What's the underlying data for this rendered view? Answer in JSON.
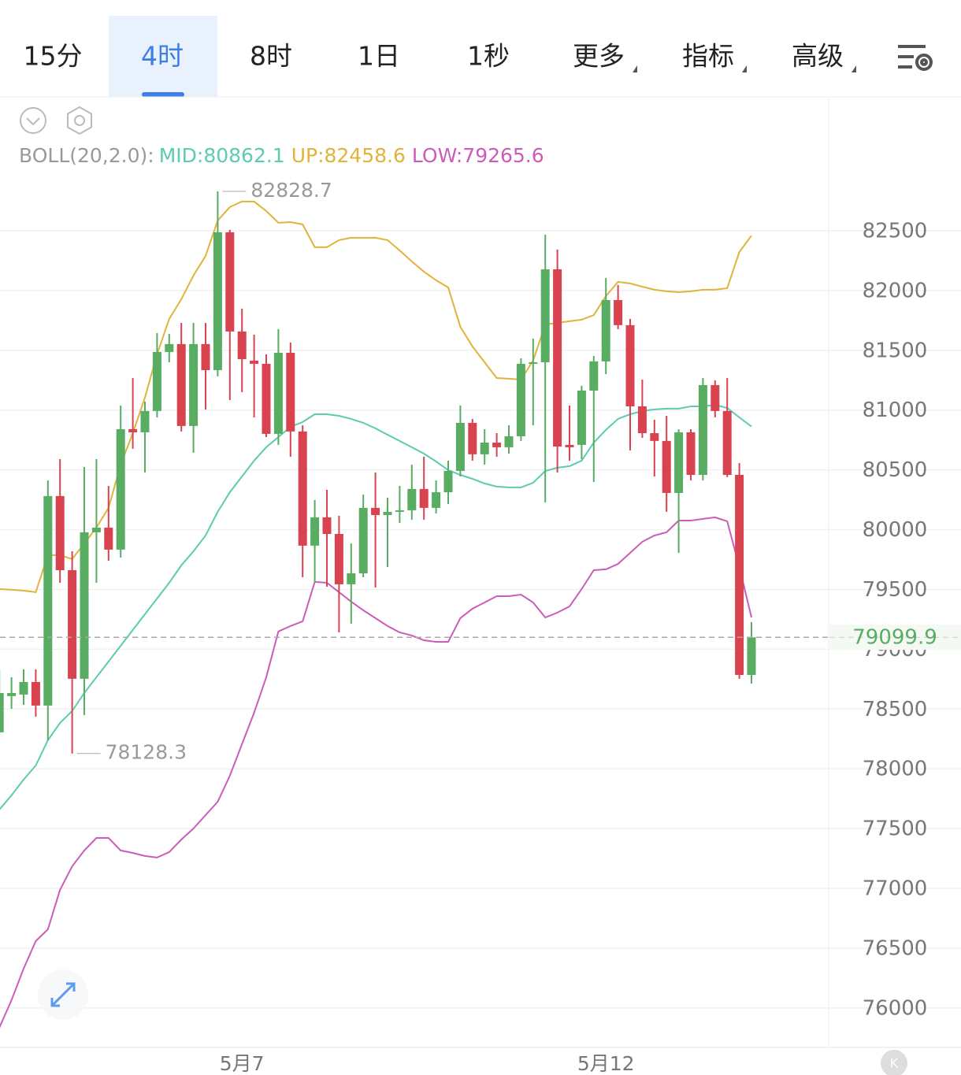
{
  "tabs": [
    "15分",
    "4时",
    "8时",
    "1日",
    "1秒",
    "更多",
    "指标",
    "高级"
  ],
  "active_tab": 1,
  "chart_data": {
    "type": "candlestick",
    "indicator": "BOLL(20,2.0):",
    "categories": [
      null,
      null,
      null,
      null,
      null,
      null,
      null,
      null,
      null,
      null,
      null,
      null,
      null,
      null,
      null,
      null,
      null,
      null,
      null,
      null,
      "5月7",
      null,
      null,
      null,
      null,
      null,
      null,
      null,
      null,
      null,
      null,
      null,
      null,
      null,
      null,
      null,
      null,
      null,
      null,
      null,
      null,
      null,
      null,
      null,
      null,
      null,
      null,
      null,
      null,
      null,
      "5月12",
      null,
      null,
      null,
      null,
      null,
      null,
      null,
      null,
      null,
      null,
      null,
      null
    ],
    "open": [
      78305,
      78608,
      78621,
      78726,
      78529,
      80281,
      79661,
      78753,
      79978,
      80017,
      79833,
      80840,
      80814,
      80992,
      81486,
      81552,
      80867,
      81552,
      81334,
      82487,
      81657,
      81413,
      81387,
      80801,
      81479,
      80821,
      79866,
      80103,
      79964,
      79543,
      79635,
      80182,
      80122,
      80149,
      80162,
      80340,
      80182,
      80313,
      80491,
      80893,
      80630,
      80728,
      80689,
      80781,
      81387,
      81400,
      82177,
      80709,
      80709,
      81163,
      81407,
      81920,
      81710,
      81031,
      80807,
      80742,
      80307,
      80814,
      80458,
      81209,
      80992,
      80458,
      78785
    ],
    "high": [
      78832,
      78766,
      78832,
      78832,
      80412,
      80590,
      79819,
      80524,
      80590,
      80366,
      81038,
      81268,
      81071,
      81644,
      81637,
      81729,
      81729,
      81729,
      82828.7,
      82507,
      81848,
      81631,
      81466,
      81677,
      81565,
      80873,
      80248,
      80333,
      80116,
      79885,
      80294,
      80478,
      80267,
      80366,
      80544,
      80610,
      80412,
      80577,
      81038,
      80926,
      80840,
      80807,
      80873,
      81433,
      81598,
      82467,
      82342,
      81038,
      81203,
      81453,
      82105,
      82046,
      81762,
      81255,
      80919,
      80952,
      80840,
      80840,
      81268,
      81249,
      81268,
      80557,
      79227
    ],
    "low": [
      78305,
      78502,
      78535,
      78436,
      78239,
      79556,
      78128.3,
      78450,
      79556,
      79740,
      79767,
      80676,
      80478,
      80939,
      81400,
      80821,
      80643,
      81005,
      81282,
      81084,
      81150,
      80939,
      80774,
      80709,
      80610,
      79602,
      79556,
      79523,
      79141,
      79214,
      79602,
      79516,
      79688,
      80057,
      80083,
      80083,
      80136,
      80215,
      80445,
      80577,
      80544,
      80610,
      80636,
      80742,
      80873,
      80228,
      80478,
      80577,
      80590,
      80399,
      81301,
      81677,
      80663,
      80768,
      80445,
      80149,
      79806,
      80412,
      80412,
      80939,
      80439,
      78753,
      78713
    ],
    "close": [
      78634,
      78634,
      78726,
      78529,
      80281,
      79661,
      78753,
      79978,
      80017,
      79833,
      80840,
      80814,
      80992,
      81486,
      81552,
      80867,
      81552,
      81334,
      82487,
      81657,
      81426,
      81387,
      80801,
      81479,
      80821,
      79866,
      80103,
      79964,
      79543,
      79635,
      80182,
      80122,
      80149,
      80162,
      80340,
      80182,
      80313,
      80491,
      80893,
      80630,
      80728,
      80689,
      80781,
      81387,
      81400,
      82177,
      80695,
      80689,
      81163,
      81407,
      81920,
      81710,
      81031,
      80807,
      80742,
      80307,
      80814,
      80458,
      81209,
      80992,
      80458,
      78785,
      79099.9
    ],
    "up_color": "#58ad62",
    "down_color": "#d8434f",
    "series": [
      {
        "name": "MID:80862.1",
        "color": "#5ccbb0",
        "values": [
          77659,
          77778,
          77910,
          78028,
          78239,
          78384,
          78483,
          78634,
          78766,
          78897,
          79029,
          79161,
          79293,
          79424,
          79556,
          79701,
          79819,
          79951,
          80149,
          80313,
          80445,
          80577,
          80689,
          80774,
          80860,
          80900,
          80965,
          80965,
          80952,
          80926,
          80893,
          80847,
          80794,
          80742,
          80689,
          80636,
          80570,
          80498,
          80458,
          80425,
          80386,
          80360,
          80353,
          80353,
          80392,
          80491,
          80518,
          80531,
          80577,
          80728,
          80834,
          80926,
          80965,
          80992,
          81005,
          81012,
          81012,
          81031,
          81031,
          81044,
          81018,
          80939,
          80862.1
        ]
      },
      {
        "name": "UP:82458.6",
        "color": "#e0b43a",
        "values": [
          79503,
          79497,
          79490,
          79477,
          79787,
          79787,
          79754,
          79885,
          80017,
          80182,
          80544,
          80807,
          81104,
          81466,
          81762,
          81927,
          82125,
          82289,
          82586,
          82698,
          82744,
          82744,
          82665,
          82566,
          82572,
          82553,
          82362,
          82362,
          82421,
          82441,
          82441,
          82441,
          82421,
          82335,
          82243,
          82158,
          82085,
          82026,
          81697,
          81532,
          81400,
          81268,
          81262,
          81255,
          81413,
          81716,
          81729,
          81743,
          81756,
          81795,
          81953,
          82072,
          82059,
          82032,
          82006,
          81993,
          81986,
          81993,
          82006,
          82006,
          82019,
          82322,
          82458.6
        ]
      },
      {
        "name": "LOW:79265.6",
        "color": "#cc5cb8",
        "values": [
          75835,
          76065,
          76329,
          76559,
          76658,
          76988,
          77185,
          77317,
          77422,
          77422,
          77317,
          77297,
          77271,
          77258,
          77304,
          77409,
          77501,
          77613,
          77725,
          77942,
          78206,
          78469,
          78766,
          79148,
          79194,
          79233,
          79563,
          79556,
          79477,
          79398,
          79326,
          79260,
          79194,
          79141,
          79115,
          79075,
          79062,
          79062,
          79260,
          79339,
          79391,
          79444,
          79444,
          79457,
          79391,
          79266,
          79306,
          79358,
          79503,
          79661,
          79668,
          79714,
          79806,
          79899,
          79951,
          79978,
          80076,
          80076,
          80090,
          80103,
          80070,
          79688,
          79265.6
        ]
      }
    ],
    "ylim": [
      75670,
      83606
    ],
    "yticks": [
      76000,
      76500,
      77000,
      77500,
      78000,
      78500,
      79000,
      79500,
      80000,
      80500,
      81000,
      81500,
      82000,
      82500
    ],
    "grid": true
  }
}
